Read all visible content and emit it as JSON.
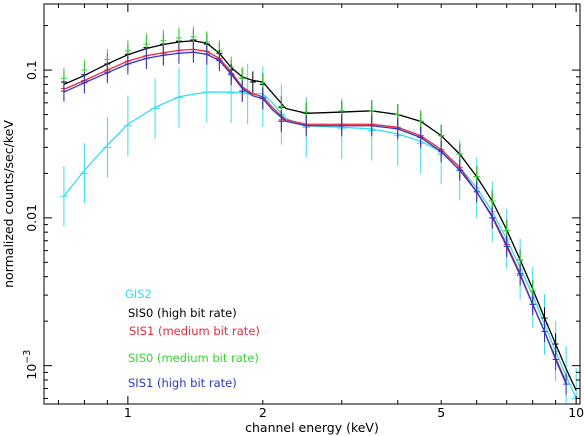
{
  "chart_data": {
    "type": "scatter",
    "xlabel": "channel energy (keV)",
    "ylabel": "normalized counts/sec/keV",
    "xscale": "log",
    "yscale": "log",
    "xlim": [
      0.65,
      10.2
    ],
    "ylim": [
      0.00055,
      0.28
    ],
    "grid": false,
    "x_ticks": [
      {
        "value": 1,
        "label": "1"
      },
      {
        "value": 2,
        "label": "2"
      },
      {
        "value": 5,
        "label": "5"
      },
      {
        "value": 10,
        "label": "10"
      }
    ],
    "y_ticks": [
      {
        "value": 0.001,
        "label_base": "10",
        "label_exp": "−3"
      },
      {
        "value": 0.01,
        "label": "0.01"
      },
      {
        "value": 0.1,
        "label": "0.1"
      }
    ],
    "legend_position": "lower-left",
    "series": [
      {
        "name": "GIS2",
        "color": "#33e0ee",
        "x": [
          0.72,
          0.8,
          0.9,
          1.0,
          1.15,
          1.3,
          1.5,
          1.7,
          1.85,
          2.0,
          2.2,
          2.5,
          3.0,
          3.5,
          4.0,
          4.5,
          5.0,
          5.5,
          6.0,
          6.5,
          7.0,
          7.5,
          8.0,
          8.5,
          9.0,
          9.5,
          10.0
        ],
        "y": [
          0.014,
          0.02,
          0.03,
          0.042,
          0.055,
          0.065,
          0.071,
          0.07,
          0.069,
          0.066,
          0.05,
          0.041,
          0.04,
          0.039,
          0.036,
          0.032,
          0.027,
          0.021,
          0.016,
          0.011,
          0.0072,
          0.0045,
          0.0029,
          0.0019,
          0.00125,
          0.00085,
          0.0006
        ],
        "model_x": [
          0.72,
          0.8,
          0.9,
          1.0,
          1.15,
          1.3,
          1.5,
          1.7,
          1.85,
          2.0,
          2.1,
          2.25,
          2.5,
          3.0,
          3.5,
          4.0,
          4.5,
          5.0,
          5.5,
          6.0,
          6.5,
          7.0,
          7.5,
          8.0,
          8.5,
          9.0,
          9.5,
          10.0
        ],
        "model_y": [
          0.014,
          0.021,
          0.031,
          0.043,
          0.056,
          0.066,
          0.071,
          0.071,
          0.07,
          0.069,
          0.06,
          0.047,
          0.042,
          0.041,
          0.04,
          0.037,
          0.033,
          0.028,
          0.022,
          0.016,
          0.011,
          0.0072,
          0.0046,
          0.003,
          0.0019,
          0.00125,
          0.00085,
          0.0006
        ]
      },
      {
        "name": "SIS0 (high bit rate)",
        "color": "#000000",
        "x": [
          0.72,
          0.8,
          0.9,
          1.0,
          1.1,
          1.2,
          1.3,
          1.4,
          1.5,
          1.6,
          1.7,
          1.8,
          1.9,
          2.0,
          2.2,
          2.5,
          3.0,
          3.5,
          4.0,
          4.5,
          5.0,
          5.5,
          6.0,
          6.5,
          7.0,
          7.5,
          8.0,
          8.5,
          9.0
        ],
        "y": [
          0.083,
          0.093,
          0.11,
          0.128,
          0.142,
          0.15,
          0.157,
          0.16,
          0.15,
          0.13,
          0.1,
          0.088,
          0.083,
          0.08,
          0.056,
          0.051,
          0.052,
          0.053,
          0.05,
          0.045,
          0.036,
          0.027,
          0.019,
          0.013,
          0.0082,
          0.0052,
          0.0032,
          0.0021,
          0.0014
        ],
        "model_x": [
          0.72,
          0.8,
          0.9,
          1.0,
          1.1,
          1.2,
          1.3,
          1.4,
          1.5,
          1.6,
          1.7,
          1.8,
          1.9,
          2.0,
          2.1,
          2.25,
          2.5,
          3.0,
          3.5,
          4.0,
          4.5,
          5.0,
          5.5,
          6.0,
          6.5,
          7.0,
          7.5,
          8.0,
          8.5,
          9.0,
          9.5,
          10.0
        ],
        "model_y": [
          0.08,
          0.092,
          0.11,
          0.127,
          0.14,
          0.149,
          0.155,
          0.158,
          0.152,
          0.13,
          0.104,
          0.09,
          0.085,
          0.083,
          0.07,
          0.055,
          0.051,
          0.052,
          0.053,
          0.05,
          0.045,
          0.036,
          0.027,
          0.019,
          0.013,
          0.0083,
          0.0052,
          0.0033,
          0.0021,
          0.0014,
          0.00095,
          0.00068
        ]
      },
      {
        "name": "SIS1 (medium bit rate)",
        "color": "#e8283a",
        "x": [
          0.72,
          0.8,
          0.9,
          1.0,
          1.1,
          1.2,
          1.3,
          1.4,
          1.5,
          1.6,
          1.7,
          1.8,
          2.0,
          2.2,
          2.5,
          3.0,
          3.5,
          4.0,
          4.5,
          5.0,
          5.5,
          6.0,
          6.5,
          7.0,
          7.5,
          8.0,
          8.5
        ],
        "y": [
          0.075,
          0.085,
          0.1,
          0.115,
          0.125,
          0.13,
          0.136,
          0.138,
          0.134,
          0.12,
          0.095,
          0.072,
          0.065,
          0.046,
          0.043,
          0.043,
          0.043,
          0.041,
          0.036,
          0.029,
          0.022,
          0.015,
          0.01,
          0.0066,
          0.0042,
          0.0026,
          0.0017
        ],
        "model_x": [
          0.72,
          0.8,
          0.9,
          1.0,
          1.1,
          1.2,
          1.3,
          1.4,
          1.5,
          1.6,
          1.7,
          1.8,
          1.9,
          2.0,
          2.1,
          2.25,
          2.5,
          3.0,
          3.5,
          4.0,
          4.5,
          5.0,
          5.5,
          6.0,
          6.5,
          7.0,
          7.5,
          8.0,
          8.5,
          9.0,
          9.5
        ],
        "model_y": [
          0.074,
          0.085,
          0.1,
          0.115,
          0.125,
          0.131,
          0.136,
          0.138,
          0.134,
          0.12,
          0.097,
          0.077,
          0.069,
          0.066,
          0.056,
          0.046,
          0.043,
          0.043,
          0.043,
          0.041,
          0.036,
          0.029,
          0.022,
          0.015,
          0.0103,
          0.0066,
          0.0042,
          0.0026,
          0.0017,
          0.00113,
          0.00077
        ]
      },
      {
        "name": "SIS0 (medium bit rate)",
        "color": "#33d633",
        "x": [
          0.72,
          0.8,
          0.9,
          1.0,
          1.1,
          1.2,
          1.3,
          1.4,
          1.5,
          1.6,
          1.7,
          1.8,
          2.0,
          2.2,
          2.5,
          3.0,
          3.5,
          4.0,
          4.5,
          5.0,
          5.5,
          6.0,
          6.5,
          7.0,
          7.5,
          8.0
        ],
        "y": [
          0.088,
          0.1,
          0.118,
          0.135,
          0.15,
          0.158,
          0.165,
          0.168,
          0.155,
          0.135,
          0.105,
          0.088,
          0.082,
          0.057,
          0.052,
          0.053,
          0.053,
          0.05,
          0.045,
          0.036,
          0.027,
          0.019,
          0.013,
          0.0082,
          0.0052,
          0.0032
        ]
      },
      {
        "name": "SIS1 (high bit rate)",
        "color": "#2f33c7",
        "x": [
          0.72,
          0.8,
          0.9,
          1.0,
          1.1,
          1.2,
          1.3,
          1.4,
          1.5,
          1.6,
          1.7,
          1.8,
          2.0,
          2.2,
          2.5,
          3.0,
          3.5,
          4.0,
          4.5,
          5.0,
          5.5,
          6.0,
          6.5,
          7.0,
          7.5,
          8.0,
          8.5,
          9.0,
          9.5
        ],
        "y": [
          0.072,
          0.082,
          0.096,
          0.11,
          0.12,
          0.126,
          0.13,
          0.132,
          0.128,
          0.116,
          0.093,
          0.072,
          0.064,
          0.045,
          0.042,
          0.042,
          0.042,
          0.04,
          0.035,
          0.028,
          0.021,
          0.015,
          0.01,
          0.0064,
          0.0041,
          0.0026,
          0.0017,
          0.0011,
          0.00075
        ],
        "model_x": [
          0.72,
          0.8,
          0.9,
          1.0,
          1.1,
          1.2,
          1.3,
          1.4,
          1.5,
          1.6,
          1.7,
          1.8,
          1.9,
          2.0,
          2.1,
          2.25,
          2.5,
          3.0,
          3.5,
          4.0,
          4.5,
          5.0,
          5.5,
          6.0,
          6.5,
          7.0,
          7.5,
          8.0,
          8.5,
          9.0,
          9.5
        ],
        "model_y": [
          0.071,
          0.082,
          0.096,
          0.11,
          0.12,
          0.126,
          0.13,
          0.132,
          0.128,
          0.116,
          0.094,
          0.075,
          0.067,
          0.064,
          0.054,
          0.045,
          0.042,
          0.042,
          0.042,
          0.04,
          0.035,
          0.028,
          0.021,
          0.015,
          0.0101,
          0.0064,
          0.0041,
          0.0026,
          0.0017,
          0.0011,
          0.00075
        ]
      }
    ]
  }
}
